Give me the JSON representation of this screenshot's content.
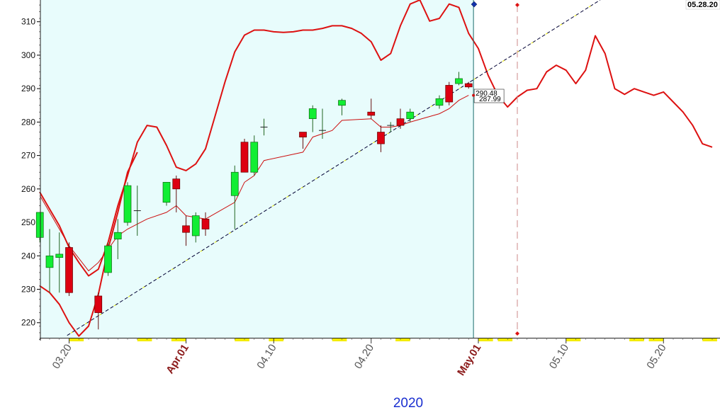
{
  "chart_data": {
    "type": "candlestick",
    "year_label": "2020",
    "date_badge": "05.28.20",
    "ylim": [
      215.5,
      316.5
    ],
    "yticks": [
      220,
      230,
      240,
      250,
      260,
      270,
      280,
      290,
      300,
      310
    ],
    "ytick_labels": [
      "220",
      "230",
      "240",
      "250",
      "260",
      "270",
      "280",
      "290",
      "300",
      "310"
    ],
    "xticks": [
      {
        "label": "03.20",
        "day": 0,
        "highlight": false
      },
      {
        "label": "Apr.01",
        "day": 12,
        "highlight": true
      },
      {
        "label": "04.10",
        "day": 21,
        "highlight": false
      },
      {
        "label": "04.20",
        "day": 31,
        "highlight": false
      },
      {
        "label": "May.01",
        "day": 42,
        "highlight": true
      },
      {
        "label": "05.10",
        "day": 51,
        "highlight": false
      },
      {
        "label": "05.20",
        "day": 61,
        "highlight": false
      }
    ],
    "last_prices": [
      "290.48",
      "287.99"
    ],
    "candles": [
      {
        "day": -3,
        "open": 245.5,
        "high": 253,
        "low": 244,
        "close": 253
      },
      {
        "day": -2,
        "open": 236.5,
        "high": 248,
        "low": 229,
        "close": 240
      },
      {
        "day": -1,
        "open": 239.5,
        "high": 247,
        "low": 229,
        "close": 240.5
      },
      {
        "day": 0,
        "open": 242.5,
        "high": 244,
        "low": 228,
        "close": 229
      },
      {
        "day": 3,
        "open": 228,
        "high": 229,
        "low": 218,
        "close": 223
      },
      {
        "day": 4,
        "open": 235,
        "high": 244,
        "low": 234,
        "close": 243
      },
      {
        "day": 5,
        "open": 245,
        "high": 251,
        "low": 239,
        "close": 247
      },
      {
        "day": 6,
        "open": 250,
        "high": 262,
        "low": 249,
        "close": 261
      },
      {
        "day": 7,
        "open": 253.5,
        "high": 261,
        "low": 246,
        "close": 253.5
      },
      {
        "day": 10,
        "open": 256,
        "high": 262,
        "low": 255,
        "close": 262
      },
      {
        "day": 11,
        "open": 263,
        "high": 264,
        "low": 253,
        "close": 260
      },
      {
        "day": 12,
        "open": 249,
        "high": 252,
        "low": 243,
        "close": 247
      },
      {
        "day": 13,
        "open": 246,
        "high": 253,
        "low": 244,
        "close": 252
      },
      {
        "day": 14,
        "open": 251,
        "high": 253,
        "low": 246,
        "close": 248
      },
      {
        "day": 17,
        "open": 258,
        "high": 267,
        "low": 248,
        "close": 265
      },
      {
        "day": 18,
        "open": 274,
        "high": 275,
        "low": 265,
        "close": 265
      },
      {
        "day": 19,
        "open": 265,
        "high": 276,
        "low": 264,
        "close": 274
      },
      {
        "day": 20,
        "open": 278,
        "high": 281,
        "low": 276,
        "close": 278.5
      },
      {
        "day": 24,
        "open": 277,
        "high": 277,
        "low": 272,
        "close": 275.5
      },
      {
        "day": 25,
        "open": 281,
        "high": 285,
        "low": 277,
        "close": 284
      },
      {
        "day": 26,
        "open": 277.5,
        "high": 284,
        "low": 275,
        "close": 277.5
      },
      {
        "day": 28,
        "open": 285,
        "high": 287,
        "low": 282,
        "close": 286.5
      },
      {
        "day": 31,
        "open": 283,
        "high": 287,
        "low": 281,
        "close": 282
      },
      {
        "day": 32,
        "open": 277,
        "high": 279,
        "low": 271,
        "close": 273.5
      },
      {
        "day": 33,
        "open": 278.5,
        "high": 280,
        "low": 277,
        "close": 279
      },
      {
        "day": 34,
        "open": 281,
        "high": 284,
        "low": 278,
        "close": 279
      },
      {
        "day": 35,
        "open": 281,
        "high": 284,
        "low": 280,
        "close": 283
      },
      {
        "day": 38,
        "open": 285,
        "high": 288,
        "low": 284,
        "close": 287
      },
      {
        "day": 39,
        "open": 291,
        "high": 292,
        "low": 285,
        "close": 286
      },
      {
        "day": 40,
        "open": 291.5,
        "high": 295,
        "low": 291,
        "close": 293
      },
      {
        "day": 41,
        "open": 291.5,
        "high": 292,
        "low": 290,
        "close": 290.5
      }
    ],
    "moving_average": [
      [
        -3,
        258
      ],
      [
        0,
        243
      ],
      [
        2,
        235.5
      ],
      [
        3,
        238
      ],
      [
        4,
        242
      ],
      [
        5,
        246
      ],
      [
        6,
        248
      ],
      [
        8,
        251
      ],
      [
        10,
        253
      ],
      [
        11,
        255
      ],
      [
        12,
        252
      ],
      [
        13,
        251.5
      ],
      [
        14,
        251
      ],
      [
        17,
        256
      ],
      [
        18,
        262
      ],
      [
        19,
        264
      ],
      [
        20,
        268.5
      ],
      [
        24,
        271
      ],
      [
        25,
        275.5
      ],
      [
        26,
        276.5
      ],
      [
        27,
        277.5
      ],
      [
        28,
        280.5
      ],
      [
        31,
        281
      ],
      [
        32,
        278.5
      ],
      [
        33,
        278.5
      ],
      [
        34,
        279
      ],
      [
        35,
        280
      ],
      [
        38,
        282.5
      ],
      [
        39,
        284
      ],
      [
        40,
        286.5
      ],
      [
        41,
        288
      ]
    ],
    "bollinger_upper": [
      [
        -3,
        259
      ],
      [
        -2,
        254
      ],
      [
        -1,
        249
      ],
      [
        0,
        242.5
      ],
      [
        1,
        238
      ],
      [
        2,
        234
      ],
      [
        3,
        236
      ],
      [
        4,
        244
      ],
      [
        5,
        255
      ],
      [
        6,
        264
      ],
      [
        7,
        274
      ],
      [
        8,
        279
      ],
      [
        9,
        278.5
      ],
      [
        10,
        273
      ],
      [
        11,
        266.5
      ],
      [
        12,
        265.5
      ],
      [
        13,
        267.5
      ],
      [
        14,
        272
      ],
      [
        15,
        282
      ],
      [
        16,
        292
      ],
      [
        17,
        301
      ],
      [
        18,
        306
      ],
      [
        19,
        307.5
      ],
      [
        20,
        307.5
      ],
      [
        21,
        307
      ],
      [
        22,
        306.8
      ],
      [
        23,
        307
      ],
      [
        24,
        307.5
      ],
      [
        25,
        307.5
      ],
      [
        26,
        308
      ],
      [
        27,
        308.8
      ],
      [
        28,
        308.8
      ],
      [
        29,
        308
      ],
      [
        30,
        306.5
      ],
      [
        31,
        304
      ],
      [
        32,
        298.5
      ],
      [
        33,
        300.5
      ],
      [
        34,
        308.8
      ],
      [
        35,
        315.3
      ],
      [
        36,
        316.5
      ],
      [
        37,
        310.2
      ],
      [
        38,
        311
      ],
      [
        39,
        315.3
      ],
      [
        40,
        314.3
      ],
      [
        41,
        306.5
      ],
      [
        42,
        302
      ],
      [
        43,
        294
      ],
      [
        44,
        288
      ],
      [
        45,
        284.5
      ],
      [
        46,
        287.5
      ],
      [
        47,
        289.5
      ],
      [
        48,
        290
      ],
      [
        49,
        295
      ],
      [
        50,
        297
      ],
      [
        51,
        295.5
      ],
      [
        52,
        291.5
      ],
      [
        53,
        295.5
      ],
      [
        54,
        305.8
      ],
      [
        55,
        300.5
      ],
      [
        56,
        290
      ],
      [
        57,
        288.3
      ],
      [
        58,
        290
      ],
      [
        59,
        289
      ],
      [
        60,
        288
      ],
      [
        61,
        289
      ],
      [
        62,
        286
      ],
      [
        63,
        283
      ],
      [
        64,
        279
      ],
      [
        65,
        273.5
      ],
      [
        66,
        272.5
      ]
    ],
    "bollinger_lower": [
      [
        -3,
        231
      ],
      [
        -2,
        229
      ],
      [
        -1,
        225.5
      ],
      [
        0,
        220
      ],
      [
        1,
        216
      ],
      [
        2,
        219
      ],
      [
        3,
        228.5
      ],
      [
        4,
        242
      ],
      [
        5,
        253
      ],
      [
        6,
        265
      ],
      [
        7,
        271
      ]
    ],
    "trendline": {
      "start": [
        -0.2,
        216.2
      ],
      "end": [
        54.5,
        316.5
      ]
    },
    "forecast_marker": {
      "day": 42,
      "price": 315
    },
    "cursor_day": 41.5,
    "dashed_vertical_day": 46,
    "shaded_range": [
      -5,
      41.5
    ],
    "axis_highlights": [
      [
        0,
        1.5
      ],
      [
        7,
        8.5
      ],
      [
        10.5,
        12
      ],
      [
        17,
        18.5
      ],
      [
        20.5,
        22
      ],
      [
        27,
        28.5
      ],
      [
        33.5,
        35
      ],
      [
        42,
        43.5
      ],
      [
        44,
        45.5
      ],
      [
        51,
        52.5
      ],
      [
        57.5,
        59
      ],
      [
        59.5,
        61
      ],
      [
        65,
        66.5
      ]
    ]
  }
}
